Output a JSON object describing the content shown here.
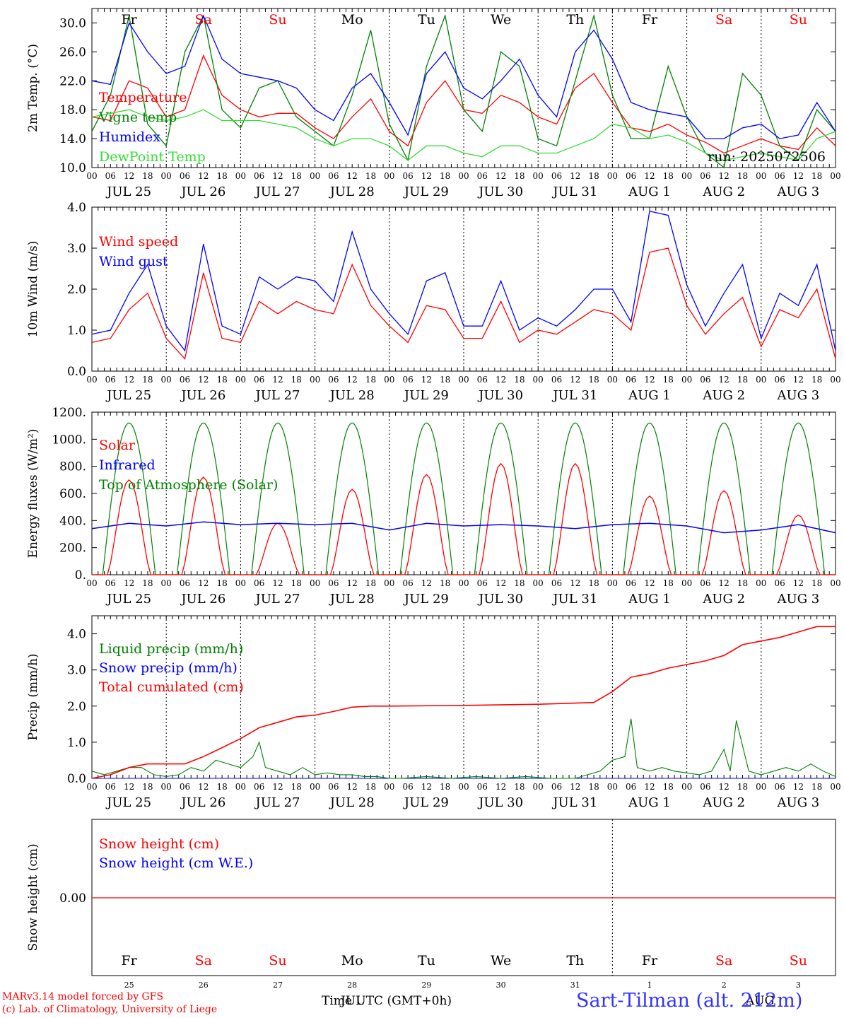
{
  "days": {
    "weekday": [
      "Fr",
      "Sa",
      "Su",
      "Mo",
      "Tu",
      "We",
      "Th",
      "Fr",
      "Sa",
      "Su"
    ],
    "weekend": [
      false,
      true,
      true,
      false,
      false,
      false,
      false,
      false,
      true,
      true
    ],
    "month_day": [
      "JUL 25",
      "JUL 26",
      "JUL 27",
      "JUL 28",
      "JUL 29",
      "JUL 30",
      "JUL 31",
      "AUG  1",
      "AUG  2",
      "AUG  3"
    ],
    "short_day": [
      "25",
      "26",
      "27",
      "28",
      "29",
      "30",
      "31",
      "1",
      "2",
      "3"
    ],
    "hour_ticks": [
      "00",
      "06",
      "12",
      "18"
    ],
    "final_tick": "00"
  },
  "colors": {
    "red": "#ff0000",
    "darkgreen": "#008000",
    "blue": "#0000ff",
    "lightgreen": "#33dd33",
    "grey": "#000000",
    "title_blue": "#3333ff"
  },
  "footer": {
    "model_line1": "MARv3.14 model forced by GFS",
    "model_line2": "(c) Lab. of Climatology, University of Liege",
    "time_label": "Time UTC (GMT+0h)",
    "overlap_1": "JUL",
    "overlap_2": "AUG",
    "station": "Sart-Tilman (alt. 212m)"
  },
  "chart_data": [
    {
      "id": "temp",
      "type": "line",
      "ylabel": "2m Temp. (°C)",
      "ylim": [
        10,
        32
      ],
      "yticks": [
        10,
        14,
        18,
        22,
        26,
        30
      ],
      "ytick_labels": [
        "10.0",
        "14.0",
        "18.0",
        "22.0",
        "26.0",
        "30.0"
      ],
      "run_text": "run: 2025072506",
      "legend": [
        {
          "text": "Temperature",
          "color": "#ff0000"
        },
        {
          "text": "Vigne temp",
          "color": "#008000"
        },
        {
          "text": "Humidex",
          "color": "#0000ff"
        },
        {
          "text": "DewPoint Temp",
          "color": "#33dd33"
        }
      ],
      "x_hours": [
        0,
        6,
        12,
        18,
        24,
        30,
        36,
        42,
        48,
        54,
        60,
        66,
        72,
        78,
        84,
        90,
        96,
        102,
        108,
        114,
        120,
        126,
        132,
        138,
        144,
        150,
        156,
        162,
        168,
        174,
        180,
        186,
        192,
        198,
        204,
        210,
        216,
        222,
        228,
        234,
        240
      ],
      "series": [
        {
          "name": "Temperature",
          "color": "#ff0000",
          "values": [
            17,
            16.5,
            22,
            21,
            17,
            18,
            25.5,
            20,
            18,
            17,
            17.5,
            17.5,
            15.5,
            14,
            17,
            19.5,
            15,
            13,
            19,
            22,
            18,
            17.5,
            20,
            19,
            17,
            16,
            21,
            23,
            19,
            15.5,
            15,
            16,
            14.5,
            13.5,
            12,
            13,
            14,
            13,
            12.5,
            15.5,
            13
          ]
        },
        {
          "name": "Vigne temp",
          "color": "#008000",
          "values": [
            15,
            20,
            31,
            16,
            13,
            26,
            31,
            18,
            15.5,
            21,
            22,
            17,
            15,
            13,
            20,
            29,
            16,
            11,
            24,
            31,
            18,
            15,
            26,
            24,
            14,
            13,
            22,
            31,
            20,
            14,
            14,
            24,
            17,
            12,
            10,
            23,
            20,
            13,
            11,
            18,
            15
          ]
        },
        {
          "name": "Humidex",
          "color": "#0000ff",
          "values": [
            22,
            21.5,
            30,
            26,
            23,
            24,
            31,
            25,
            23,
            22.5,
            22,
            21,
            18,
            16.5,
            21,
            23,
            19,
            14.5,
            23,
            26,
            21,
            19.5,
            22,
            25,
            20,
            17,
            26,
            29,
            25,
            19,
            18,
            17.5,
            17,
            14,
            14,
            15.5,
            16,
            14,
            14.5,
            19,
            15
          ]
        },
        {
          "name": "DewPoint Temp",
          "color": "#33dd33",
          "values": [
            17,
            17.5,
            18,
            17,
            16.5,
            17,
            18,
            16.5,
            16.5,
            16.5,
            16,
            15.5,
            14,
            13,
            14,
            14,
            13,
            11,
            13,
            13,
            12,
            11.5,
            13,
            13,
            12,
            12,
            13,
            14,
            16,
            15.5,
            14,
            14.5,
            13.5,
            12,
            11,
            11.5,
            12,
            11.5,
            11,
            14,
            15
          ]
        }
      ]
    },
    {
      "id": "wind",
      "type": "line",
      "ylabel": "10m Wind (m/s)",
      "ylim": [
        0,
        4
      ],
      "yticks": [
        0,
        1,
        2,
        3,
        4
      ],
      "ytick_labels": [
        "0.0",
        "1.0",
        "2.0",
        "3.0",
        "4.0"
      ],
      "legend": [
        {
          "text": "Wind speed",
          "color": "#ff0000"
        },
        {
          "text": "Wind gust",
          "color": "#0000ff"
        }
      ],
      "x_hours": [
        0,
        6,
        12,
        18,
        24,
        30,
        36,
        42,
        48,
        54,
        60,
        66,
        72,
        78,
        84,
        90,
        96,
        102,
        108,
        114,
        120,
        126,
        132,
        138,
        144,
        150,
        156,
        162,
        168,
        174,
        180,
        186,
        192,
        198,
        204,
        210,
        216,
        222,
        228,
        234,
        240
      ],
      "series": [
        {
          "name": "Wind speed",
          "color": "#ff0000",
          "values": [
            0.7,
            0.8,
            1.5,
            1.9,
            0.8,
            0.3,
            2.4,
            0.8,
            0.7,
            1.7,
            1.4,
            1.7,
            1.5,
            1.4,
            2.6,
            1.6,
            1.1,
            0.7,
            1.6,
            1.5,
            0.8,
            0.8,
            1.7,
            0.7,
            1,
            0.9,
            1.2,
            1.5,
            1.4,
            1,
            2.9,
            3,
            1.6,
            0.9,
            1.4,
            1.8,
            0.6,
            1.5,
            1.3,
            2,
            0.3
          ]
        },
        {
          "name": "Wind gust",
          "color": "#0000ff",
          "values": [
            0.9,
            1,
            1.9,
            2.6,
            1.1,
            0.5,
            3.1,
            1.1,
            0.9,
            2.3,
            2,
            2.3,
            2.2,
            1.7,
            3.4,
            2,
            1.4,
            0.9,
            2.2,
            2.4,
            1.1,
            1.1,
            2.2,
            1,
            1.3,
            1.1,
            1.5,
            2,
            2,
            1.2,
            3.9,
            3.8,
            2.1,
            1.1,
            1.9,
            2.6,
            0.8,
            1.9,
            1.6,
            2.6,
            0.5
          ]
        }
      ]
    },
    {
      "id": "energy",
      "type": "line",
      "ylabel": "Energy fluxes (W/m²)",
      "ylim": [
        0,
        1200
      ],
      "yticks": [
        0,
        200,
        400,
        600,
        800,
        1000,
        1200
      ],
      "ytick_labels": [
        "0.",
        "200.",
        "400.",
        "600.",
        "800.",
        "1000.",
        "1200."
      ],
      "legend": [
        {
          "text": "Solar",
          "color": "#ff0000"
        },
        {
          "text": "Infrared",
          "color": "#0000ff"
        },
        {
          "text": "Top of Atmosphere (Solar)",
          "color": "#008000"
        }
      ],
      "top_of_atmosphere_peak": 1120,
      "solar_peaks": [
        700,
        720,
        380,
        630,
        740,
        820,
        820,
        580,
        620,
        440
      ],
      "series": [
        {
          "name": "Infrared",
          "color": "#0000ff",
          "x_hours": [
            0,
            12,
            24,
            36,
            48,
            60,
            72,
            84,
            96,
            108,
            120,
            132,
            144,
            156,
            168,
            180,
            192,
            204,
            216,
            228,
            240
          ],
          "values": [
            340,
            380,
            360,
            390,
            370,
            380,
            370,
            380,
            330,
            380,
            360,
            370,
            360,
            340,
            370,
            380,
            360,
            310,
            330,
            370,
            310
          ]
        }
      ]
    },
    {
      "id": "precip",
      "type": "line",
      "ylabel": "Precip (mm/h)",
      "ylim": [
        0,
        4.5
      ],
      "yticks": [
        0,
        1,
        2,
        3,
        4
      ],
      "ytick_labels": [
        "0.0",
        "1.0",
        "2.0",
        "3.0",
        "4.0"
      ],
      "legend": [
        {
          "text": "Liquid precip (mm/h)",
          "color": "#008000"
        },
        {
          "text": "Snow precip (mm/h)",
          "color": "#0000ff"
        },
        {
          "text": "Total cumulated (cm)",
          "color": "#ff0000"
        }
      ],
      "series": [
        {
          "name": "Total cumulated (cm)",
          "color": "#ff0000",
          "x_hours": [
            0,
            6,
            12,
            18,
            24,
            30,
            36,
            42,
            48,
            54,
            60,
            66,
            72,
            78,
            84,
            90,
            96,
            120,
            144,
            162,
            168,
            174,
            180,
            186,
            192,
            198,
            204,
            210,
            216,
            222,
            228,
            234,
            240
          ],
          "values": [
            0,
            0.1,
            0.3,
            0.4,
            0.4,
            0.4,
            0.6,
            0.85,
            1.1,
            1.4,
            1.55,
            1.7,
            1.75,
            1.85,
            1.97,
            2,
            2,
            2.02,
            2.05,
            2.1,
            2.4,
            2.8,
            2.9,
            3.05,
            3.15,
            3.25,
            3.4,
            3.7,
            3.8,
            3.9,
            4.05,
            4.2,
            4.2
          ]
        },
        {
          "name": "Liquid precip (mm/h)",
          "color": "#008000",
          "x_hours": [
            0,
            4,
            8,
            12,
            16,
            20,
            24,
            28,
            32,
            36,
            40,
            44,
            48,
            52,
            54,
            56,
            60,
            64,
            68,
            72,
            76,
            80,
            84,
            88,
            92,
            96,
            100,
            108,
            116,
            124,
            132,
            140,
            148,
            156,
            160,
            164,
            168,
            172,
            174,
            176,
            180,
            184,
            188,
            192,
            196,
            200,
            204,
            206,
            208,
            212,
            216,
            220,
            224,
            228,
            232,
            236,
            240
          ],
          "values": [
            0.2,
            0.1,
            0.2,
            0.3,
            0.3,
            0.1,
            0.05,
            0.1,
            0.3,
            0.2,
            0.5,
            0.4,
            0.3,
            0.6,
            1,
            0.3,
            0.2,
            0.1,
            0.3,
            0.1,
            0.15,
            0.1,
            0.1,
            0.05,
            0.05,
            0,
            0,
            0.05,
            0,
            0.05,
            0,
            0.05,
            0,
            0,
            0.1,
            0.2,
            0.5,
            0.6,
            1.65,
            0.3,
            0.2,
            0.3,
            0.2,
            0.15,
            0.1,
            0.2,
            0.8,
            0.2,
            1.6,
            0.2,
            0.1,
            0.2,
            0.3,
            0.2,
            0.4,
            0.2,
            0.05
          ]
        },
        {
          "name": "Snow precip (mm/h)",
          "color": "#0000ff",
          "x_hours": [
            0,
            240
          ],
          "values": [
            0,
            0
          ]
        }
      ]
    },
    {
      "id": "snow",
      "type": "line",
      "ylabel": "Snow height (cm)",
      "ytick_labels": [
        "0.00"
      ],
      "legend": [
        {
          "text": "Snow height (cm)",
          "color": "#ff0000"
        },
        {
          "text": "Snow height (cm W.E.)",
          "color": "#0000ff"
        }
      ],
      "series": [
        {
          "name": "Snow height (cm)",
          "color": "#ff0000",
          "x_hours": [
            0,
            240
          ],
          "values": [
            0,
            0
          ]
        }
      ]
    }
  ]
}
